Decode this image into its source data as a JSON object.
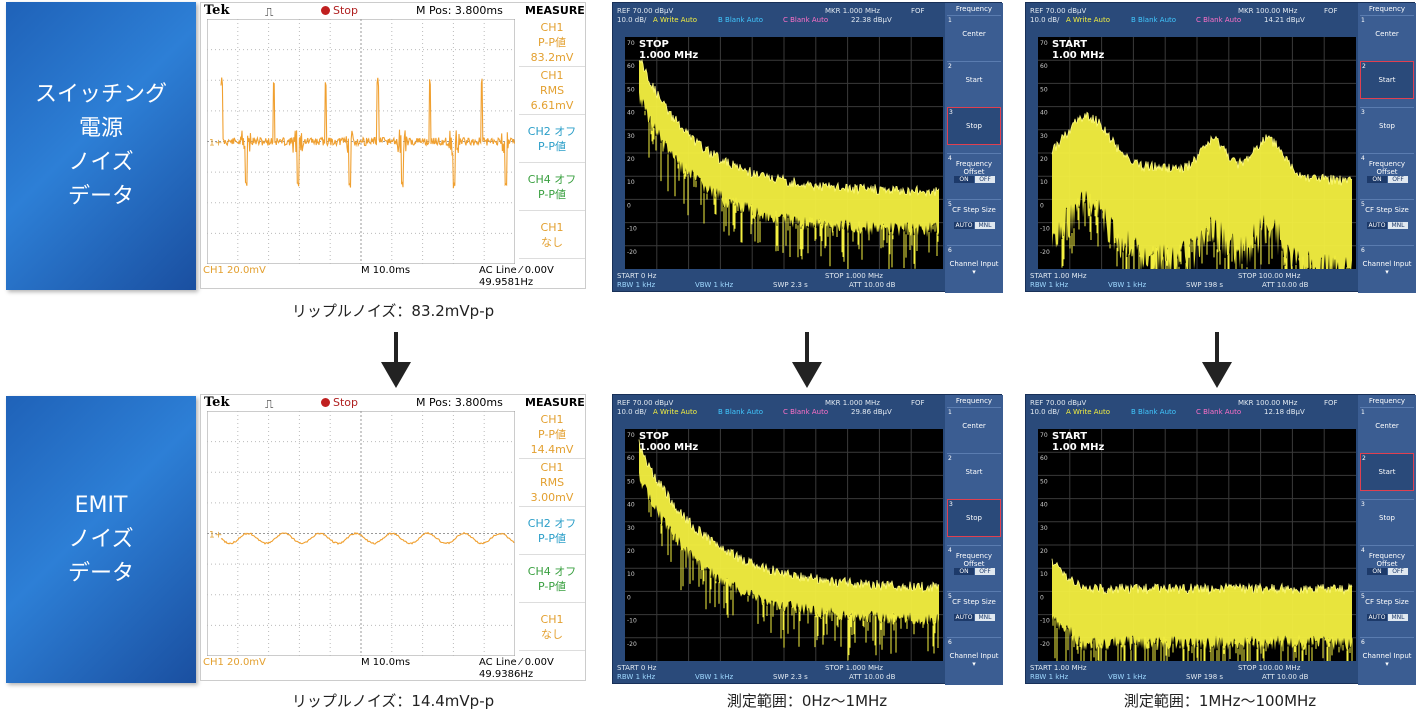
{
  "rows": [
    {
      "label_lines": [
        "スイッチング",
        "電源",
        "ノイズ",
        "データ"
      ],
      "scope": {
        "brand": "Tek",
        "trigger_symbol": "⎍",
        "status": "Stop",
        "mpos": "M Pos: 3.800ms",
        "measure_title": "MEASURE",
        "side": [
          {
            "lines": [
              "CH1",
              "P-P値",
              "83.2mV"
            ],
            "color": "#e3a030"
          },
          {
            "lines": [
              "CH1",
              "RMS",
              "6.61mV"
            ],
            "color": "#e3a030"
          },
          {
            "lines": [
              "CH2 オフ",
              "P-P値"
            ],
            "color": "#2a9ec8"
          },
          {
            "lines": [
              "CH4 オフ",
              "P-P値"
            ],
            "color": "#3aa040"
          },
          {
            "lines": [
              "CH1",
              "なし"
            ],
            "color": "#e3a030"
          }
        ],
        "ch_scale": "CH1  20.0mV",
        "time_scale": "M 10.0ms",
        "trigger_line": "AC Line ⁄ 0.00V",
        "frequency": "49.9581Hz",
        "ch_marker": "1+",
        "waveform": "spiky"
      },
      "caption": "リップルノイズ：83.2mVp-p"
    },
    {
      "label_lines": [
        "EMIT",
        "ノイズ",
        "データ"
      ],
      "scope": {
        "brand": "Tek",
        "trigger_symbol": "⎍",
        "status": "Stop",
        "mpos": "M Pos: 3.800ms",
        "measure_title": "MEASURE",
        "side": [
          {
            "lines": [
              "CH1",
              "P-P値",
              "14.4mV"
            ],
            "color": "#e3a030"
          },
          {
            "lines": [
              "CH1",
              "RMS",
              "3.00mV"
            ],
            "color": "#e3a030"
          },
          {
            "lines": [
              "CH2 オフ",
              "P-P値"
            ],
            "color": "#2a9ec8"
          },
          {
            "lines": [
              "CH4 オフ",
              "P-P値"
            ],
            "color": "#3aa040"
          },
          {
            "lines": [
              "CH1",
              "なし"
            ],
            "color": "#e3a030"
          }
        ],
        "ch_scale": "CH1  20.0mV",
        "time_scale": "M 10.0ms",
        "trigger_line": "AC Line ⁄ 0.00V",
        "frequency": "49.9386Hz",
        "ch_marker": "1+",
        "waveform": "smooth"
      },
      "caption": "リップルノイズ：14.4mVp-p"
    }
  ],
  "spectra": [
    {
      "ref": "REF  70.00 dBµV",
      "div": "10.0 dB/",
      "mkr": "MKR 1.000 MHz",
      "mkr_val": "22.38 dBµV",
      "fof": "FOF",
      "mode_a": "A Write Auto",
      "mode_b": "B Blank Auto",
      "mode_c": "C Blank Auto",
      "overlay": [
        "STOP",
        "1.000 MHz"
      ],
      "start": "START  0 Hz",
      "stop": "STOP 1.000 MHz",
      "rbw": "RBW  1 kHz",
      "vbw": "VBW  1 kHz",
      "swp": "SWP  2.3 s",
      "att": "ATT  10.00 dB",
      "menu_title": "Frequency",
      "selected": 2,
      "shape": "decay-noisy"
    },
    {
      "ref": "REF  70.00 dBµV",
      "div": "10.0 dB/",
      "mkr": "MKR 100.00 MHz",
      "mkr_val": "14.21 dBµV",
      "fof": "FOF",
      "mode_a": "A Write Auto",
      "mode_b": "B Blank Auto",
      "mode_c": "C Blank Auto",
      "overlay": [
        "START",
        "1.00 MHz"
      ],
      "start": "START  1.00 MHz",
      "stop": "STOP 100.00 MHz",
      "rbw": "RBW  1 kHz",
      "vbw": "VBW  1 kHz",
      "swp": "SWP  198 s",
      "att": "ATT  10.00 dB",
      "menu_title": "Frequency",
      "selected": 1,
      "shape": "wide-humps"
    },
    {
      "ref": "REF  70.00 dBµV",
      "div": "10.0 dB/",
      "mkr": "MKR 1.000 MHz",
      "mkr_val": "29.86 dBµV",
      "fof": "FOF",
      "mode_a": "A Write Auto",
      "mode_b": "B Blank Auto",
      "mode_c": "C Blank Auto",
      "overlay": [
        "STOP",
        "1.000 MHz"
      ],
      "start": "START  0 Hz",
      "stop": "STOP 1.000 MHz",
      "rbw": "RBW  1 kHz",
      "vbw": "VBW  1 kHz",
      "swp": "SWP  2.3 s",
      "att": "ATT  10.00 dB",
      "menu_title": "Frequency",
      "selected": 2,
      "shape": "decay-clean"
    },
    {
      "ref": "REF  70.00 dBµV",
      "div": "10.0 dB/",
      "mkr": "MKR 100.00 MHz",
      "mkr_val": "12.18 dBµV",
      "fof": "FOF",
      "mode_a": "A Write Auto",
      "mode_b": "B Blank Auto",
      "mode_c": "C Blank Auto",
      "overlay": [
        "START",
        "1.00 MHz"
      ],
      "start": "START  1.00 MHz",
      "stop": "STOP 100.00 MHz",
      "rbw": "RBW  1 kHz",
      "vbw": "VBW  1 kHz",
      "swp": "SWP  198 s",
      "att": "ATT  10.00 dB",
      "menu_title": "Frequency",
      "selected": 1,
      "shape": "flat-band"
    }
  ],
  "menu_items": [
    {
      "num": "1",
      "text": "Center"
    },
    {
      "num": "2",
      "text": "Start"
    },
    {
      "num": "3",
      "text": "Stop"
    },
    {
      "num": "4",
      "text": "Frequency Offset",
      "toggle": [
        "ON",
        "OFF"
      ]
    },
    {
      "num": "5",
      "text": "CF Step Size",
      "toggle": [
        "AUTO",
        "MNL"
      ]
    },
    {
      "num": "6",
      "text": "Channel Input ▾"
    }
  ],
  "spectrum_ticks": [
    "70",
    "60",
    "50",
    "40",
    "30",
    "20",
    "10",
    "0",
    "-10",
    "-20"
  ],
  "captions": {
    "range_1": "測定範囲：0Hz〜1MHz",
    "range_2": "測定範囲：1MHz〜100MHz"
  },
  "colors": {
    "orange_trace": "#f0a030",
    "yellow_trace": "#f4f040",
    "label_blue": "#1f62b8"
  },
  "chart_data": [
    {
      "type": "line",
      "title": "",
      "series": [
        {
          "name": "CH1",
          "values_description": "ripple with periodic spikes",
          "peak_to_peak_mV": 83.2,
          "rms_mV": 6.61
        }
      ],
      "frequency_hz": 49.9581
    },
    {
      "type": "line",
      "title": "",
      "series": [
        {
          "name": "CH1",
          "peak_to_peak_mV": 14.4,
          "rms_mV": 3.0
        }
      ],
      "frequency_hz": 49.9386
    },
    {
      "type": "line",
      "title": "",
      "x_range_hz": [
        0,
        1000000
      ],
      "ylim": [
        -20,
        70
      ],
      "y_unit": "dBµV",
      "marker": {
        "x_mhz": 1.0,
        "y": 22.38
      }
    },
    {
      "type": "line",
      "title": "",
      "x_range_mhz": [
        1,
        100
      ],
      "ylim": [
        -20,
        70
      ],
      "y_unit": "dBµV",
      "marker": {
        "x_mhz": 100.0,
        "y": 14.21
      }
    },
    {
      "type": "line",
      "title": "",
      "x_range_hz": [
        0,
        1000000
      ],
      "ylim": [
        -20,
        70
      ],
      "y_unit": "dBµV",
      "marker": {
        "x_mhz": 1.0,
        "y": 29.86
      }
    },
    {
      "type": "line",
      "title": "",
      "x_range_mhz": [
        1,
        100
      ],
      "ylim": [
        -20,
        70
      ],
      "y_unit": "dBµV",
      "marker": {
        "x_mhz": 100.0,
        "y": 12.18
      }
    }
  ]
}
